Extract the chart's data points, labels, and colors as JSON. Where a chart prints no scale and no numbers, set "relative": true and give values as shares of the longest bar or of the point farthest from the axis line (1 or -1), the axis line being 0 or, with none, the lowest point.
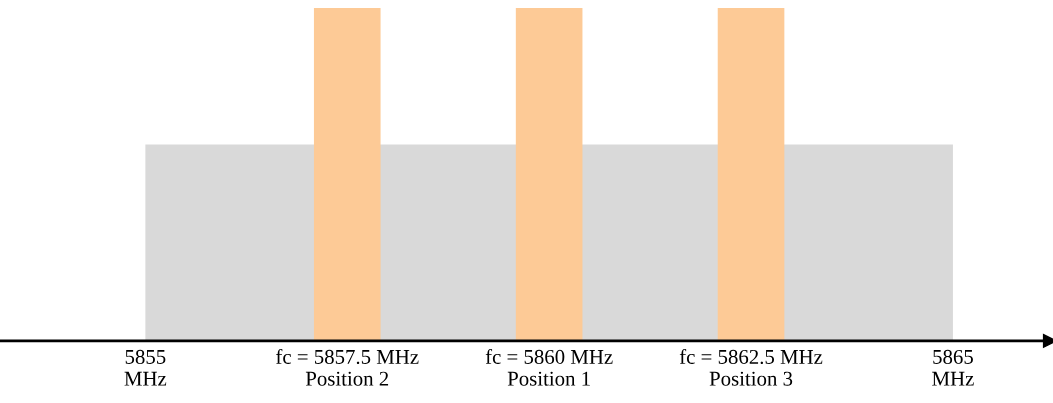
{
  "chart_data": {
    "type": "bar",
    "relative": true,
    "xlim": [
      5853.2,
      5866.2
    ],
    "xticks": [
      {
        "value": 5855,
        "label": "5855\nMHz"
      },
      {
        "value": 5857.5,
        "label": "fc = 5857.5 MHz\nPosition 2"
      },
      {
        "value": 5860,
        "label": "fc = 5860 MHz\nPosition 1"
      },
      {
        "value": 5862.5,
        "label": "fc = 5862.5 MHz\nPosition 3"
      },
      {
        "value": 5865,
        "label": "5865\nMHz"
      }
    ],
    "series": [
      {
        "type": "area",
        "color": "#d9d9d9",
        "x": [
          5855,
          5865
        ],
        "values": [
          0.59,
          0.59
        ]
      },
      {
        "color": "#fdca96",
        "x": [
          5857.5,
          5860,
          5862.5
        ],
        "values": [
          1,
          1,
          1
        ]
      }
    ],
    "grid": false
  }
}
